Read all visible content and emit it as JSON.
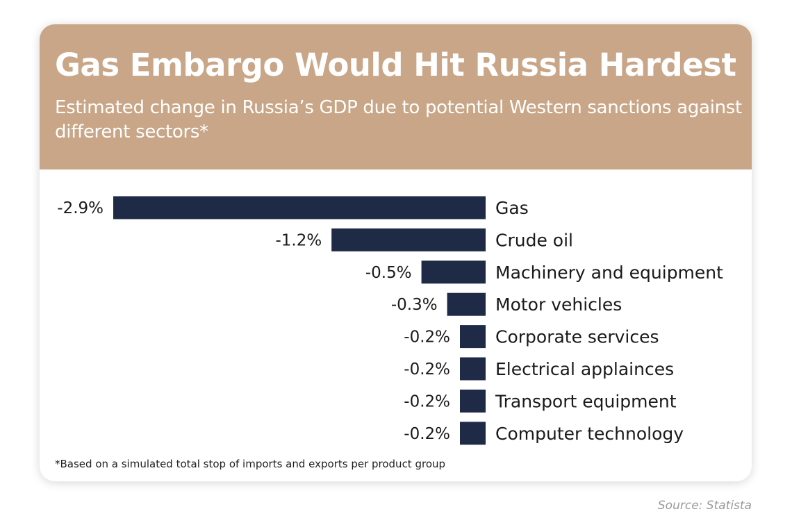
{
  "title": "Gas Embargo Would Hit Russia Hardest",
  "subtitle": "Estimated change in Russia’s GDP due to potential Western sanctions against different sectors*",
  "footnote": "*Based on a simulated total stop of imports and exports per product group",
  "source": "Source: Statista",
  "colors": {
    "header": "#c8a687",
    "bar": "#1f2a47"
  },
  "chart_data": {
    "type": "bar",
    "orientation": "horizontal",
    "categories": [
      "Gas",
      "Crude oil",
      "Machinery and equipment",
      "Motor vehicles",
      "Corporate services",
      "Electrical applainces",
      "Transport equipment",
      "Computer technology"
    ],
    "values": [
      -2.9,
      -1.2,
      -0.5,
      -0.3,
      -0.2,
      -0.2,
      -0.2,
      -0.2
    ],
    "value_labels": [
      "-2.9%",
      "-1.2%",
      "-0.5%",
      "-0.3%",
      "-0.2%",
      "-0.2%",
      "-0.2%",
      "-0.2%"
    ],
    "unit": "%",
    "xlim": [
      -2.9,
      0
    ],
    "grid": false,
    "legend": "none"
  }
}
